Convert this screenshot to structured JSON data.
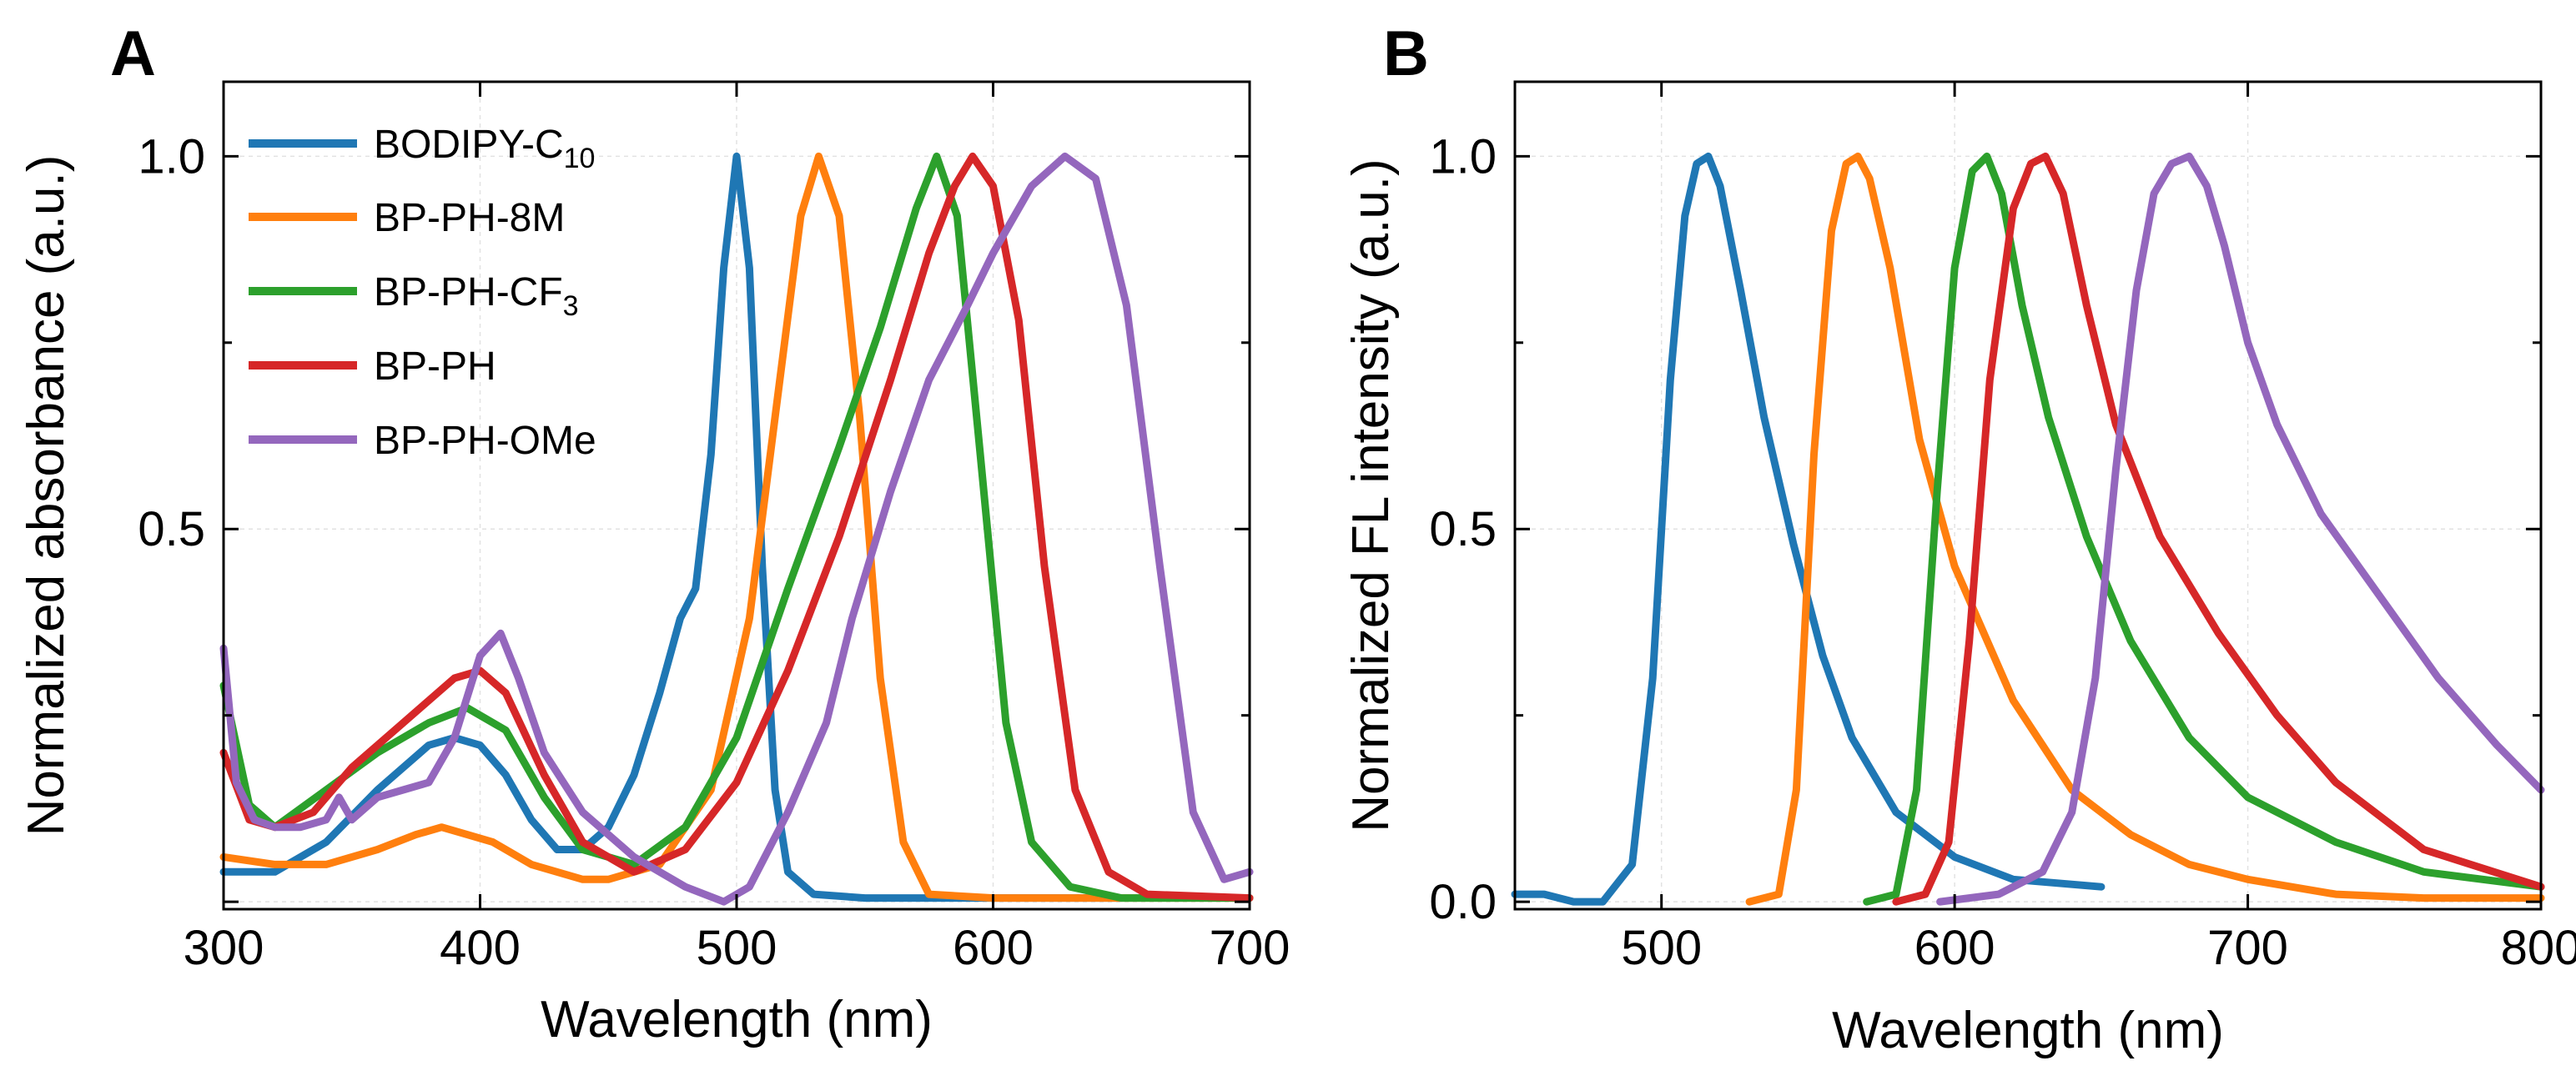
{
  "panel_labels": {
    "a": "A",
    "b": "B"
  },
  "chart_data": [
    {
      "type": "line",
      "panel": "A",
      "title": "",
      "xlabel": "Wavelength (nm)",
      "ylabel": "Normalized absorbance (a.u.)",
      "xlim": [
        300,
        700
      ],
      "ylim": [
        -0.01,
        1.1
      ],
      "xticks": [
        300,
        400,
        500,
        600,
        700
      ],
      "xtick_labels": [
        "300",
        "400",
        "500",
        "600",
        "700"
      ],
      "yticks": [
        0.0,
        0.5,
        1.0
      ],
      "ytick_labels": [
        "",
        "0.5",
        "1.0"
      ],
      "minor_yticks": [
        0.25,
        0.75
      ],
      "legend_position": "top-left",
      "grid": true,
      "series": [
        {
          "name": "BODIPY-C10",
          "legend_main": "BODIPY-C",
          "legend_sub": "10",
          "color": "#1f77b4",
          "x": [
            300,
            320,
            340,
            360,
            380,
            390,
            400,
            410,
            420,
            430,
            440,
            450,
            460,
            470,
            478,
            484,
            490,
            495,
            500,
            505,
            510,
            515,
            520,
            530,
            550,
            600,
            650
          ],
          "y": [
            0.04,
            0.04,
            0.08,
            0.15,
            0.21,
            0.22,
            0.21,
            0.17,
            0.11,
            0.07,
            0.07,
            0.1,
            0.17,
            0.28,
            0.38,
            0.42,
            0.6,
            0.85,
            1.0,
            0.85,
            0.45,
            0.15,
            0.04,
            0.01,
            0.005,
            0.005,
            0.005
          ]
        },
        {
          "name": "BP-PH-8M",
          "legend_main": "BP-PH-8M",
          "legend_sub": "",
          "color": "#ff7f0e",
          "x": [
            300,
            320,
            340,
            360,
            375,
            385,
            395,
            405,
            420,
            440,
            450,
            470,
            490,
            505,
            515,
            525,
            532,
            540,
            548,
            556,
            565,
            575,
            600,
            700
          ],
          "y": [
            0.06,
            0.05,
            0.05,
            0.07,
            0.09,
            0.1,
            0.09,
            0.08,
            0.05,
            0.03,
            0.03,
            0.05,
            0.15,
            0.38,
            0.65,
            0.92,
            1.0,
            0.92,
            0.65,
            0.3,
            0.08,
            0.01,
            0.005,
            0.005
          ]
        },
        {
          "name": "BP-PH-CF3",
          "legend_main": "BP-PH-CF",
          "legend_sub": "3",
          "color": "#2ca02c",
          "x": [
            300,
            310,
            320,
            340,
            360,
            380,
            395,
            410,
            425,
            440,
            460,
            480,
            500,
            520,
            540,
            556,
            570,
            578,
            586,
            595,
            605,
            615,
            630,
            650,
            700
          ],
          "y": [
            0.29,
            0.13,
            0.1,
            0.15,
            0.2,
            0.24,
            0.26,
            0.23,
            0.14,
            0.07,
            0.05,
            0.1,
            0.22,
            0.42,
            0.61,
            0.77,
            0.93,
            1.0,
            0.92,
            0.6,
            0.24,
            0.08,
            0.02,
            0.005,
            0.005
          ]
        },
        {
          "name": "BP-PH",
          "legend_main": "BP-PH",
          "legend_sub": "",
          "color": "#d62728",
          "x": [
            300,
            310,
            320,
            335,
            350,
            370,
            390,
            400,
            410,
            425,
            440,
            460,
            480,
            500,
            520,
            540,
            560,
            575,
            585,
            592,
            600,
            610,
            620,
            632,
            645,
            660,
            700
          ],
          "y": [
            0.2,
            0.11,
            0.1,
            0.12,
            0.18,
            0.24,
            0.3,
            0.31,
            0.28,
            0.17,
            0.08,
            0.04,
            0.07,
            0.16,
            0.31,
            0.49,
            0.7,
            0.87,
            0.96,
            1.0,
            0.96,
            0.78,
            0.45,
            0.15,
            0.04,
            0.01,
            0.005
          ]
        },
        {
          "name": "BP-PH-OMe",
          "legend_main": "BP-PH-OMe",
          "legend_sub": "",
          "color": "#9467bd",
          "x": [
            300,
            305,
            312,
            320,
            330,
            340,
            345,
            350,
            360,
            370,
            380,
            390,
            400,
            408,
            415,
            425,
            440,
            460,
            480,
            495,
            505,
            520,
            535,
            545,
            560,
            575,
            590,
            600,
            615,
            628,
            640,
            652,
            665,
            678,
            690,
            700
          ],
          "y": [
            0.34,
            0.16,
            0.11,
            0.1,
            0.1,
            0.11,
            0.14,
            0.11,
            0.14,
            0.15,
            0.16,
            0.22,
            0.33,
            0.36,
            0.3,
            0.2,
            0.12,
            0.06,
            0.02,
            0.0,
            0.02,
            0.12,
            0.24,
            0.38,
            0.55,
            0.7,
            0.8,
            0.87,
            0.96,
            1.0,
            0.97,
            0.8,
            0.45,
            0.12,
            0.03,
            0.04
          ]
        }
      ]
    },
    {
      "type": "line",
      "panel": "B",
      "title": "",
      "xlabel": "Wavelength (nm)",
      "ylabel": "Normalized FL intensity (a.u.)",
      "xlim": [
        450,
        800
      ],
      "ylim": [
        -0.01,
        1.1
      ],
      "xticks": [
        500,
        600,
        700,
        800
      ],
      "xtick_labels": [
        "500",
        "600",
        "700",
        "800"
      ],
      "yticks": [
        0.0,
        0.5,
        1.0
      ],
      "ytick_labels": [
        "0.0",
        "0.5",
        "1.0"
      ],
      "minor_yticks": [
        0.25,
        0.75
      ],
      "grid": true,
      "series": [
        {
          "name": "BODIPY-C10",
          "color": "#1f77b4",
          "x": [
            450,
            460,
            470,
            480,
            490,
            497,
            503,
            508,
            512,
            516,
            520,
            527,
            535,
            545,
            555,
            565,
            580,
            600,
            620,
            650
          ],
          "y": [
            0.01,
            0.01,
            0.0,
            0.0,
            0.05,
            0.3,
            0.7,
            0.92,
            0.99,
            1.0,
            0.96,
            0.82,
            0.65,
            0.48,
            0.33,
            0.22,
            0.12,
            0.06,
            0.03,
            0.02
          ]
        },
        {
          "name": "BP-PH-8M",
          "color": "#ff7f0e",
          "x": [
            530,
            540,
            546,
            552,
            558,
            563,
            567,
            571,
            578,
            588,
            600,
            620,
            640,
            660,
            680,
            700,
            730,
            760,
            800
          ],
          "y": [
            0.0,
            0.01,
            0.15,
            0.6,
            0.9,
            0.99,
            1.0,
            0.97,
            0.85,
            0.62,
            0.45,
            0.27,
            0.15,
            0.09,
            0.05,
            0.03,
            0.01,
            0.005,
            0.005
          ]
        },
        {
          "name": "BP-PH-CF3",
          "color": "#2ca02c",
          "x": [
            570,
            580,
            587,
            594,
            600,
            606,
            611,
            616,
            623,
            632,
            645,
            660,
            680,
            700,
            730,
            760,
            800
          ],
          "y": [
            0.0,
            0.01,
            0.15,
            0.55,
            0.85,
            0.98,
            1.0,
            0.95,
            0.8,
            0.65,
            0.49,
            0.35,
            0.22,
            0.14,
            0.08,
            0.04,
            0.02
          ]
        },
        {
          "name": "BP-PH",
          "color": "#d62728",
          "x": [
            580,
            590,
            598,
            605,
            612,
            620,
            626,
            631,
            637,
            645,
            655,
            670,
            690,
            710,
            730,
            760,
            800
          ],
          "y": [
            0.0,
            0.01,
            0.08,
            0.35,
            0.7,
            0.93,
            0.99,
            1.0,
            0.95,
            0.8,
            0.64,
            0.49,
            0.36,
            0.25,
            0.16,
            0.07,
            0.02
          ]
        },
        {
          "name": "BP-PH-OMe",
          "color": "#9467bd",
          "x": [
            595,
            615,
            630,
            640,
            648,
            655,
            662,
            668,
            674,
            680,
            686,
            692,
            700,
            710,
            725,
            745,
            765,
            785,
            800
          ],
          "y": [
            0.0,
            0.01,
            0.04,
            0.12,
            0.3,
            0.58,
            0.82,
            0.95,
            0.99,
            1.0,
            0.96,
            0.88,
            0.75,
            0.64,
            0.52,
            0.41,
            0.3,
            0.21,
            0.15
          ]
        }
      ]
    }
  ]
}
